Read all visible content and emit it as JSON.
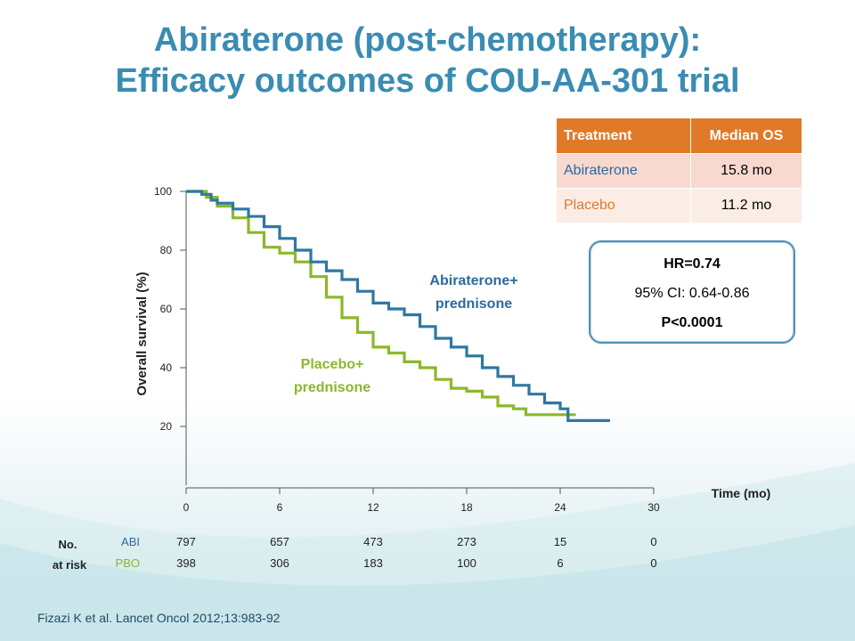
{
  "slide": {
    "title_line1": "Abiraterone (post-chemotherapy):",
    "title_line2": "Efficacy outcomes of COU-AA-301 trial",
    "citation": "Fizazi K et al. Lancet Oncol 2012;13:983-92",
    "colors": {
      "title": "#3a8cb2",
      "abiraterone": "#2f77a2",
      "placebo": "#8bb82a",
      "table_header": "#e07a29"
    }
  },
  "os_table": {
    "headers": [
      "Treatment",
      "Median OS"
    ],
    "rows": [
      {
        "treatment": "Abiraterone",
        "median": "15.8 mo"
      },
      {
        "treatment": "Placebo",
        "median": "11.2 mo"
      }
    ]
  },
  "hr_box": {
    "hr": "HR=0.74",
    "ci": "95% CI: 0.64-0.86",
    "p": "P<0.0001"
  },
  "chart_data": {
    "type": "line",
    "ylabel": "Overall survival (%)",
    "xlabel": "Time (mo)",
    "xlim": [
      0,
      30
    ],
    "ylim": [
      0,
      100
    ],
    "x_ticks": [
      "0",
      "6",
      "12",
      "18",
      "24",
      "30"
    ],
    "y_ticks": [
      "20",
      "40",
      "60",
      "80",
      "100"
    ],
    "series": [
      {
        "name": "Abiraterone+ prednisone",
        "label_line1": "Abiraterone+",
        "label_line2": "prednisone",
        "points": [
          [
            0,
            100
          ],
          [
            0.8,
            100
          ],
          [
            1,
            99
          ],
          [
            1.6,
            97
          ],
          [
            2,
            96
          ],
          [
            3,
            94
          ],
          [
            4,
            91.5
          ],
          [
            5,
            88
          ],
          [
            6,
            84
          ],
          [
            7,
            80
          ],
          [
            8,
            76
          ],
          [
            9,
            73
          ],
          [
            10,
            70
          ],
          [
            11,
            66
          ],
          [
            12,
            62
          ],
          [
            13,
            60
          ],
          [
            14,
            58
          ],
          [
            15,
            54
          ],
          [
            16,
            50
          ],
          [
            17,
            47
          ],
          [
            18,
            44
          ],
          [
            19,
            40
          ],
          [
            20,
            37
          ],
          [
            21,
            34
          ],
          [
            22,
            31
          ],
          [
            23,
            28
          ],
          [
            24,
            26
          ],
          [
            24.5,
            22
          ],
          [
            27.2,
            22
          ]
        ]
      },
      {
        "name": "Placebo+ prednisone",
        "label_line1": "Placebo+",
        "label_line2": "prednisone",
        "points": [
          [
            0,
            100
          ],
          [
            0.8,
            100
          ],
          [
            1.3,
            98
          ],
          [
            2,
            95
          ],
          [
            3,
            91
          ],
          [
            4,
            86
          ],
          [
            5,
            81
          ],
          [
            6,
            79
          ],
          [
            7,
            76
          ],
          [
            8,
            71
          ],
          [
            9,
            64
          ],
          [
            10,
            57
          ],
          [
            11,
            52
          ],
          [
            12,
            47
          ],
          [
            13,
            45
          ],
          [
            14,
            42
          ],
          [
            15,
            40
          ],
          [
            16,
            36
          ],
          [
            17,
            33
          ],
          [
            18,
            32
          ],
          [
            19,
            30
          ],
          [
            20,
            27
          ],
          [
            21,
            26
          ],
          [
            21.8,
            24
          ],
          [
            25,
            24
          ]
        ]
      }
    ],
    "at_risk": {
      "header_line1": "No.",
      "header_line2": "at risk",
      "rows": [
        {
          "label": "ABI",
          "values": [
            "797",
            "657",
            "473",
            "273",
            "15",
            "0"
          ]
        },
        {
          "label": "PBO",
          "values": [
            "398",
            "306",
            "183",
            "100",
            "6",
            "0"
          ]
        }
      ]
    }
  }
}
